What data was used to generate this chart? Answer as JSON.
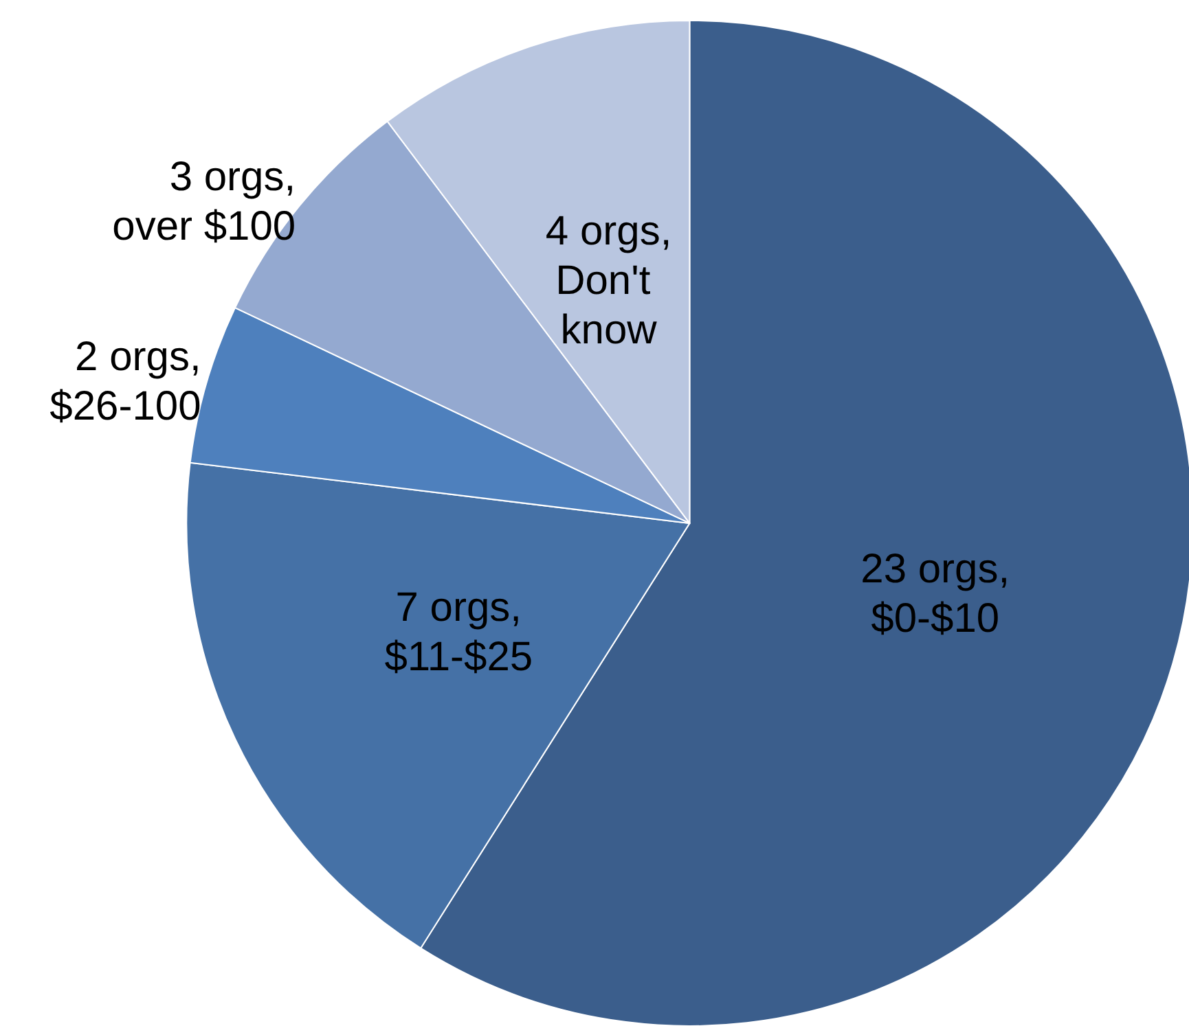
{
  "chart_data": {
    "type": "pie",
    "categories": [
      "$0-$10",
      "$11-$25",
      "$26-100",
      "over $100",
      "Don't know"
    ],
    "values": [
      23,
      7,
      2,
      3,
      4
    ],
    "value_labels": [
      "23 orgs,",
      "7 orgs,",
      "2 orgs,",
      "3 orgs,",
      "4 orgs,"
    ],
    "colors": [
      "#3b5e8c",
      "#4571a6",
      "#4e80bd",
      "#94a9d0",
      "#b9c6e0"
    ],
    "legend": false
  }
}
